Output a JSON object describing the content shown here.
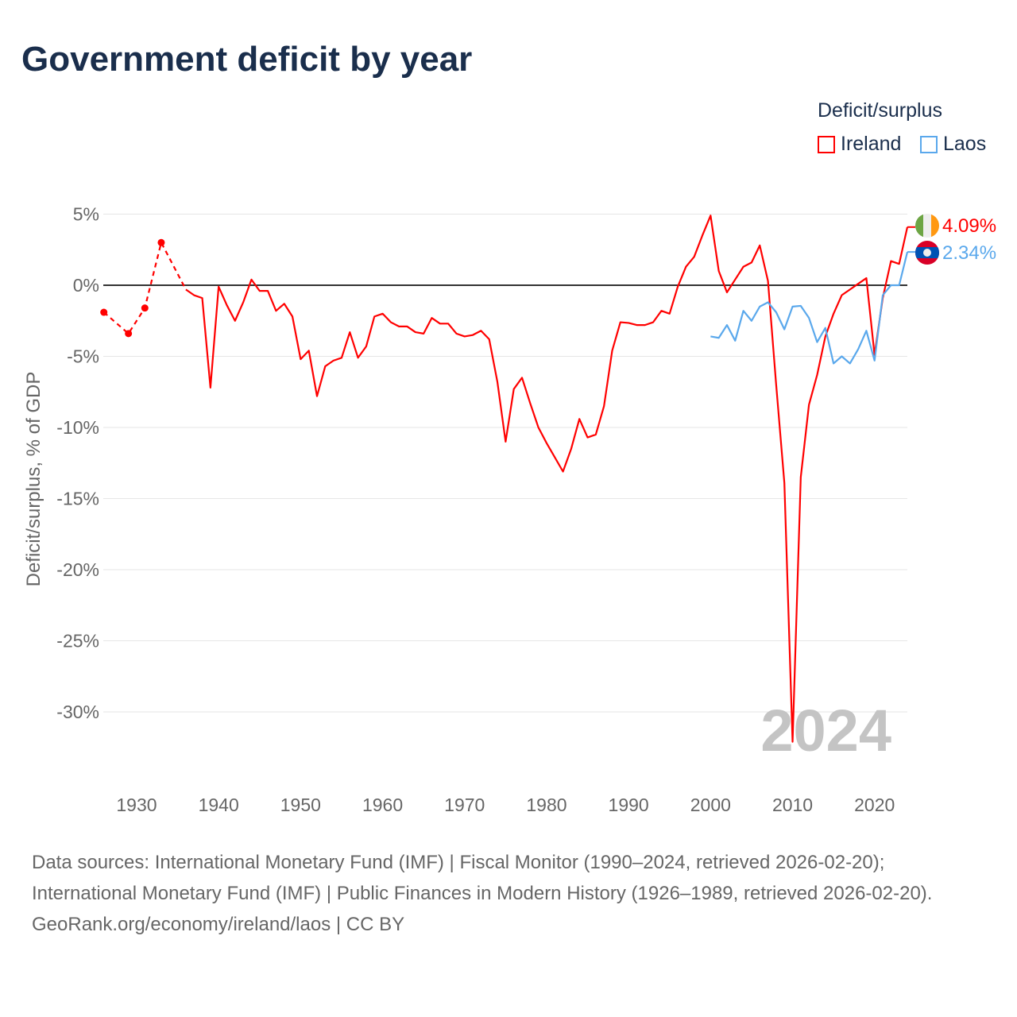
{
  "title": "Government deficit by year",
  "legend": {
    "title": "Deficit/surplus",
    "items": [
      {
        "label": "Ireland",
        "color": "#ff0000"
      },
      {
        "label": "Laos",
        "color": "#5aa8ec"
      }
    ]
  },
  "watermark_year": "2024",
  "source_lines": [
    "Data sources: International Monetary Fund (IMF) | Fiscal Monitor (1990–2024, retrieved 2026-02-20); International Monetary Fund (IMF) | Public Finances in Modern History (1926–1989, retrieved 2026-02-20).",
    "GeoRank.org/economy/ireland/laos | CC BY"
  ],
  "chart_data": {
    "type": "line",
    "title": "Government deficit by year",
    "xlabel": "",
    "ylabel": "Deficit/surplus, % of GDP",
    "xlim": [
      1926,
      2024
    ],
    "ylim": [
      -35,
      7
    ],
    "xticks": [
      1930,
      1940,
      1950,
      1960,
      1970,
      1980,
      1990,
      2000,
      2010,
      2020
    ],
    "yticks": [
      5,
      0,
      -5,
      -10,
      -15,
      -20,
      -25,
      -30
    ],
    "ytick_labels": [
      "5%",
      "0%",
      "-5%",
      "-10%",
      "-15%",
      "-20%",
      "-25%",
      "-30%"
    ],
    "grid": true,
    "legend_position": "top-right",
    "series": [
      {
        "name": "Ireland",
        "color": "#ff0000",
        "end_label": "4.09%",
        "sparse_points": [
          [
            1926,
            -1.9
          ],
          [
            1929,
            -3.4
          ],
          [
            1931,
            -1.6
          ],
          [
            1933,
            3.0
          ],
          [
            1936,
            -0.3
          ]
        ],
        "x": [
          1936,
          1937,
          1938,
          1939,
          1940,
          1941,
          1942,
          1943,
          1944,
          1945,
          1946,
          1947,
          1948,
          1949,
          1950,
          1951,
          1952,
          1953,
          1954,
          1955,
          1956,
          1957,
          1958,
          1959,
          1960,
          1961,
          1962,
          1963,
          1964,
          1965,
          1966,
          1967,
          1968,
          1969,
          1970,
          1971,
          1972,
          1973,
          1974,
          1975,
          1976,
          1977,
          1978,
          1979,
          1980,
          1981,
          1982,
          1983,
          1984,
          1985,
          1986,
          1987,
          1988,
          1989,
          1990,
          1991,
          1992,
          1993,
          1994,
          1995,
          1996,
          1997,
          1998,
          1999,
          2000,
          2001,
          2002,
          2003,
          2004,
          2005,
          2006,
          2007,
          2008,
          2009,
          2010,
          2011,
          2012,
          2013,
          2014,
          2015,
          2016,
          2017,
          2018,
          2019,
          2020,
          2021,
          2022,
          2023,
          2024
        ],
        "values": [
          -0.3,
          -0.7,
          -0.9,
          -7.2,
          -0.1,
          -1.4,
          -2.5,
          -1.2,
          0.4,
          -0.4,
          -0.4,
          -1.8,
          -1.3,
          -2.2,
          -5.2,
          -4.6,
          -7.8,
          -5.7,
          -5.3,
          -5.1,
          -3.3,
          -5.1,
          -4.3,
          -2.2,
          -2.0,
          -2.6,
          -2.9,
          -2.9,
          -3.3,
          -3.4,
          -2.3,
          -2.7,
          -2.7,
          -3.4,
          -3.6,
          -3.5,
          -3.2,
          -3.8,
          -6.8,
          -11.0,
          -7.3,
          -6.5,
          -8.3,
          -10.0,
          -11.1,
          -12.1,
          -13.1,
          -11.5,
          -9.4,
          -10.7,
          -10.5,
          -8.5,
          -4.6,
          -2.6,
          -2.65,
          -2.8,
          -2.8,
          -2.6,
          -1.8,
          -2.0,
          -0.1,
          1.3,
          2.0,
          3.5,
          4.9,
          1.0,
          -0.5,
          0.4,
          1.3,
          1.6,
          2.8,
          0.3,
          -7.0,
          -13.9,
          -32.1,
          -13.5,
          -8.4,
          -6.3,
          -3.6,
          -2.0,
          -0.7,
          -0.3,
          0.1,
          0.5,
          -4.9,
          -0.9,
          1.7,
          1.5,
          4.09
        ]
      },
      {
        "name": "Laos",
        "color": "#5aa8ec",
        "end_label": "2.34%",
        "x": [
          2000,
          2001,
          2002,
          2003,
          2004,
          2005,
          2006,
          2007,
          2008,
          2009,
          2010,
          2011,
          2012,
          2013,
          2014,
          2015,
          2016,
          2017,
          2018,
          2019,
          2020,
          2021,
          2022,
          2023,
          2024
        ],
        "values": [
          -3.6,
          -3.7,
          -2.8,
          -3.9,
          -1.8,
          -2.5,
          -1.5,
          -1.2,
          -1.9,
          -3.1,
          -1.5,
          -1.45,
          -2.3,
          -4.0,
          -3.0,
          -5.5,
          -5.0,
          -5.5,
          -4.5,
          -3.2,
          -5.3,
          -0.7,
          0.0,
          0.0,
          2.34
        ]
      }
    ]
  }
}
